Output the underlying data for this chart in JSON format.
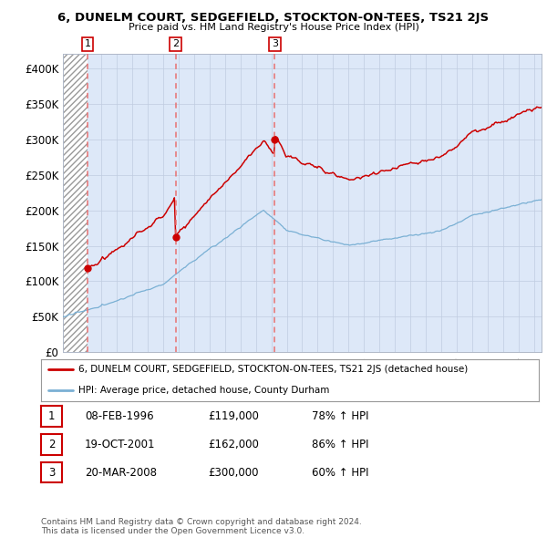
{
  "title": "6, DUNELM COURT, SEDGEFIELD, STOCKTON-ON-TEES, TS21 2JS",
  "subtitle": "Price paid vs. HM Land Registry's House Price Index (HPI)",
  "ylim": [
    0,
    420000
  ],
  "yticks": [
    0,
    50000,
    100000,
    150000,
    200000,
    250000,
    300000,
    350000,
    400000
  ],
  "ytick_labels": [
    "£0",
    "£50K",
    "£100K",
    "£150K",
    "£200K",
    "£250K",
    "£300K",
    "£350K",
    "£400K"
  ],
  "sale_year_floats": [
    1996.1,
    2001.8,
    2008.22
  ],
  "sale_prices": [
    119000,
    162000,
    300000
  ],
  "sale_labels": [
    "1",
    "2",
    "3"
  ],
  "red_line_color": "#cc0000",
  "blue_line_color": "#7ab0d4",
  "dashed_line_color": "#e87070",
  "marker_color": "#cc0000",
  "legend_label_red": "6, DUNELM COURT, SEDGEFIELD, STOCKTON-ON-TEES, TS21 2JS (detached house)",
  "legend_label_blue": "HPI: Average price, detached house, County Durham",
  "footnote": "Contains HM Land Registry data © Crown copyright and database right 2024.\nThis data is licensed under the Open Government Licence v3.0.",
  "table_rows": [
    [
      "1",
      "08-FEB-1996",
      "£119,000",
      "78% ↑ HPI"
    ],
    [
      "2",
      "19-OCT-2001",
      "£162,000",
      "86% ↑ HPI"
    ],
    [
      "3",
      "20-MAR-2008",
      "£300,000",
      "60% ↑ HPI"
    ]
  ],
  "background_color": "#ffffff",
  "plot_bg_color": "#dde8f8",
  "xstart": 1994.5,
  "xend": 2025.5
}
